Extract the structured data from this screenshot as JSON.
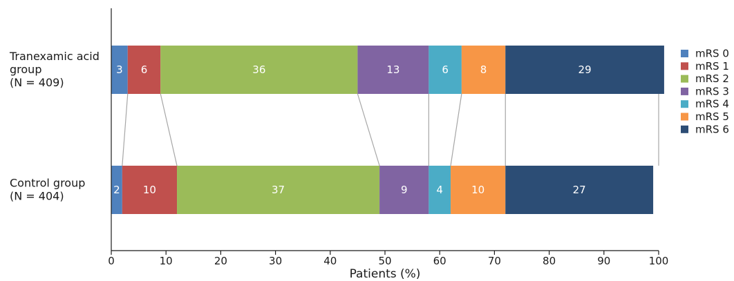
{
  "chart_data": {
    "type": "bar",
    "orientation": "horizontal",
    "stacked": true,
    "xlabel": "Patients (%)",
    "xlim": [
      0,
      100
    ],
    "xticks": [
      0,
      10,
      20,
      30,
      40,
      50,
      60,
      70,
      80,
      90,
      100
    ],
    "grid": false,
    "legend_position": "right",
    "categories": [
      [
        "Tranexamic acid",
        "group",
        "(N = 409)"
      ],
      [
        "Control group",
        "(N = 404)"
      ]
    ],
    "series": [
      {
        "name": "mRS 0",
        "color": "#4f81bd",
        "values": [
          3,
          2
        ]
      },
      {
        "name": "mRS 1",
        "color": "#c0504d",
        "values": [
          6,
          10
        ]
      },
      {
        "name": "mRS 2",
        "color": "#9bbb59",
        "values": [
          36,
          37
        ]
      },
      {
        "name": "mRS 3",
        "color": "#8064a2",
        "values": [
          13,
          9
        ]
      },
      {
        "name": "mRS 4",
        "color": "#4bacc6",
        "values": [
          6,
          4
        ]
      },
      {
        "name": "mRS 5",
        "color": "#f79646",
        "values": [
          8,
          10
        ]
      },
      {
        "name": "mRS 6",
        "color": "#2c4d75",
        "values": [
          29,
          27
        ]
      }
    ],
    "connector_color": "#a6a6a6"
  }
}
